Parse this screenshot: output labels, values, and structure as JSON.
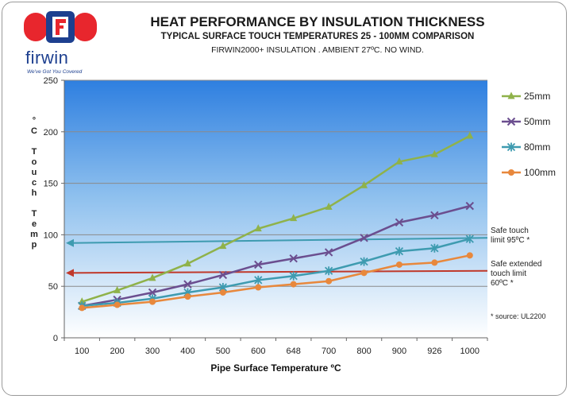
{
  "brand": {
    "name": "firwin",
    "tagline": "We've Got You Covered",
    "colors": {
      "red": "#e8262d",
      "blue": "#1d3f8f"
    }
  },
  "header": {
    "title": "HEAT PERFORMANCE BY INSULATION THICKNESS",
    "subtitle": "TYPICAL SURFACE TOUCH TEMPERATURES 25 - 100MM COMPARISON",
    "subtitle2": "FIRWIN2000+ INSULATION . AMBIENT 27ºC. NO WIND."
  },
  "y_axis_title": {
    "degree": "°",
    "letters": [
      "C",
      "",
      "T",
      "o",
      "u",
      "c",
      "h",
      "",
      "T",
      "e",
      "m",
      "p"
    ]
  },
  "notes": {
    "touch_limit": [
      "Safe  touch",
      "limit 95ºC  *"
    ],
    "extended_limit": [
      "Safe extended",
      "touch limit",
      "60ºC *"
    ],
    "source": "* source: UL2200"
  },
  "chart_data": {
    "type": "line",
    "xlabel": "Pipe Surface Temperature  ºC",
    "categories": [
      "100",
      "200",
      "300",
      "400",
      "500",
      "600",
      "648",
      "700",
      "800",
      "900",
      "926",
      "1000"
    ],
    "ylim": [
      0,
      250
    ],
    "yticks": [
      0,
      50,
      100,
      150,
      200,
      250
    ],
    "grid": true,
    "legend_position": "right",
    "series": [
      {
        "name": "25mm",
        "color": "#8fb24a",
        "marker": "triangle",
        "values": [
          35,
          46,
          58,
          72,
          89,
          106,
          116,
          127,
          148,
          171,
          178,
          196
        ]
      },
      {
        "name": "50mm",
        "color": "#6b4e8f",
        "marker": "x",
        "values": [
          31,
          37,
          44,
          52,
          61,
          71,
          77,
          83,
          97,
          112,
          119,
          128
        ]
      },
      {
        "name": "80mm",
        "color": "#3e9bb0",
        "marker": "asterisk",
        "values": [
          31,
          34,
          38,
          44,
          49,
          56,
          60,
          65,
          74,
          84,
          87,
          96
        ]
      },
      {
        "name": "100mm",
        "color": "#e8883c",
        "marker": "circle",
        "values": [
          29,
          32,
          35,
          40,
          44,
          49,
          52,
          55,
          63,
          71,
          73,
          80
        ]
      }
    ],
    "reference_lines": [
      {
        "color": "#3e9bb0",
        "start": 92,
        "end": 97
      },
      {
        "color": "#c0392b",
        "start": 63,
        "end": 65
      }
    ]
  }
}
